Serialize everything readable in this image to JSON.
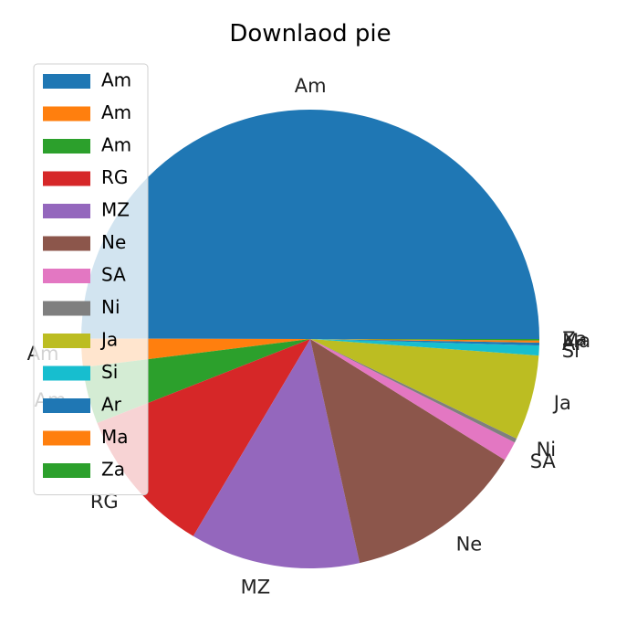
{
  "chart_data": {
    "type": "pie",
    "title": "Downlaod pie",
    "start_angle_deg": 0,
    "direction": "counterclockwise",
    "legend_position": "left",
    "slices": [
      {
        "label": "Am",
        "value": 50.0,
        "color": "#1f77b4"
      },
      {
        "label": "Am",
        "value": 2.0,
        "color": "#ff7f0e"
      },
      {
        "label": "Am",
        "value": 4.0,
        "color": "#2ca02c"
      },
      {
        "label": "RG",
        "value": 10.5,
        "color": "#d62728"
      },
      {
        "label": "MZ",
        "value": 12.0,
        "color": "#9467bd"
      },
      {
        "label": "Ne",
        "value": 12.7,
        "color": "#8c564b"
      },
      {
        "label": "SA",
        "value": 1.4,
        "color": "#e377c2"
      },
      {
        "label": "Ni",
        "value": 0.3,
        "color": "#7f7f7f"
      },
      {
        "label": "Ja",
        "value": 6.0,
        "color": "#bcbd22"
      },
      {
        "label": "Si",
        "value": 0.7,
        "color": "#17becf"
      },
      {
        "label": "Ar",
        "value": 0.2,
        "color": "#1f77b4"
      },
      {
        "label": "Ma",
        "value": 0.15,
        "color": "#ff7f0e"
      },
      {
        "label": "Za",
        "value": 0.1,
        "color": "#2ca02c"
      }
    ]
  }
}
